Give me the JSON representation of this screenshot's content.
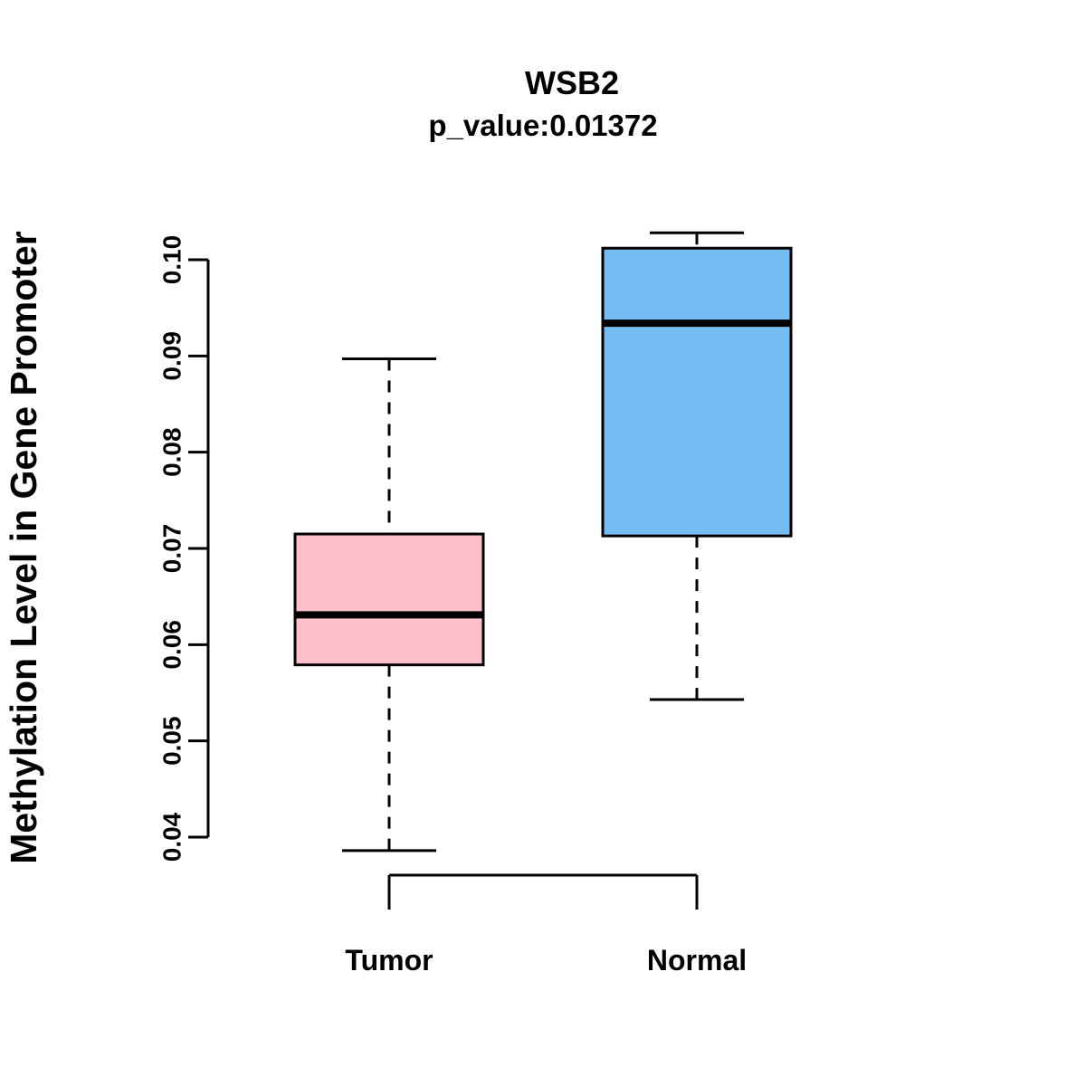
{
  "chart_data": {
    "type": "boxplot",
    "title": "WSB2",
    "subtitle": "p_value:0.01372",
    "ylabel": "Methylation Level in Gene Promoter",
    "ylim": [
      0.04,
      0.1
    ],
    "yticks": [
      0.04,
      0.05,
      0.06,
      0.07,
      0.08,
      0.09,
      0.1
    ],
    "grid": false,
    "legend": "none",
    "colors": {
      "box_border": "#000000",
      "median_line": "#000000",
      "background": "#FFFFFF"
    },
    "groups": [
      {
        "label": "Tumor",
        "color": "#FFC0CB",
        "whisker_low": 0.0386,
        "q1": 0.0579,
        "median": 0.0631,
        "q3": 0.0715,
        "whisker_high": 0.0897
      },
      {
        "label": "Normal",
        "color": "#74BCF2",
        "whisker_low": 0.0543,
        "q1": 0.0713,
        "median": 0.0934,
        "q3": 0.1012,
        "whisker_high": 0.1028
      }
    ]
  }
}
